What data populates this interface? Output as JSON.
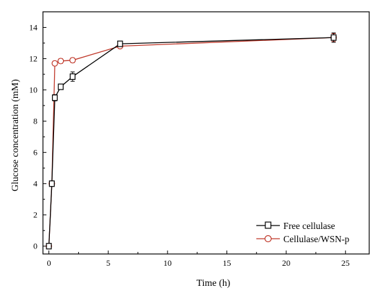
{
  "chart_data": {
    "type": "line",
    "xlabel": "Time (h)",
    "ylabel": "Glucose concentration (mM)",
    "xlim": [
      -0.5,
      27
    ],
    "ylim": [
      -0.5,
      15
    ],
    "xticks": [
      0,
      5,
      10,
      15,
      20,
      25
    ],
    "yticks": [
      0,
      2,
      4,
      6,
      8,
      10,
      12,
      14
    ],
    "grid": false,
    "legend_position": "bottom-right",
    "series": [
      {
        "name": "Free cellulase",
        "color": "#000000",
        "marker": "square",
        "x": [
          0,
          0.25,
          0.5,
          1,
          2,
          6,
          24
        ],
        "y": [
          0.0,
          4.0,
          9.5,
          10.2,
          10.85,
          12.95,
          13.35
        ],
        "error": [
          0.1,
          0.15,
          0.2,
          0.15,
          0.3,
          0.15,
          0.3
        ]
      },
      {
        "name": "Cellulase/WSN-p",
        "color": "#c0392b",
        "marker": "circle",
        "x": [
          0,
          0.25,
          0.5,
          1,
          2,
          6,
          24
        ],
        "y": [
          0.0,
          4.0,
          11.7,
          11.85,
          11.9,
          12.8,
          13.35
        ],
        "error": [
          0.1,
          0.15,
          0.15,
          0.15,
          0.15,
          0.15,
          0.25
        ]
      }
    ]
  }
}
